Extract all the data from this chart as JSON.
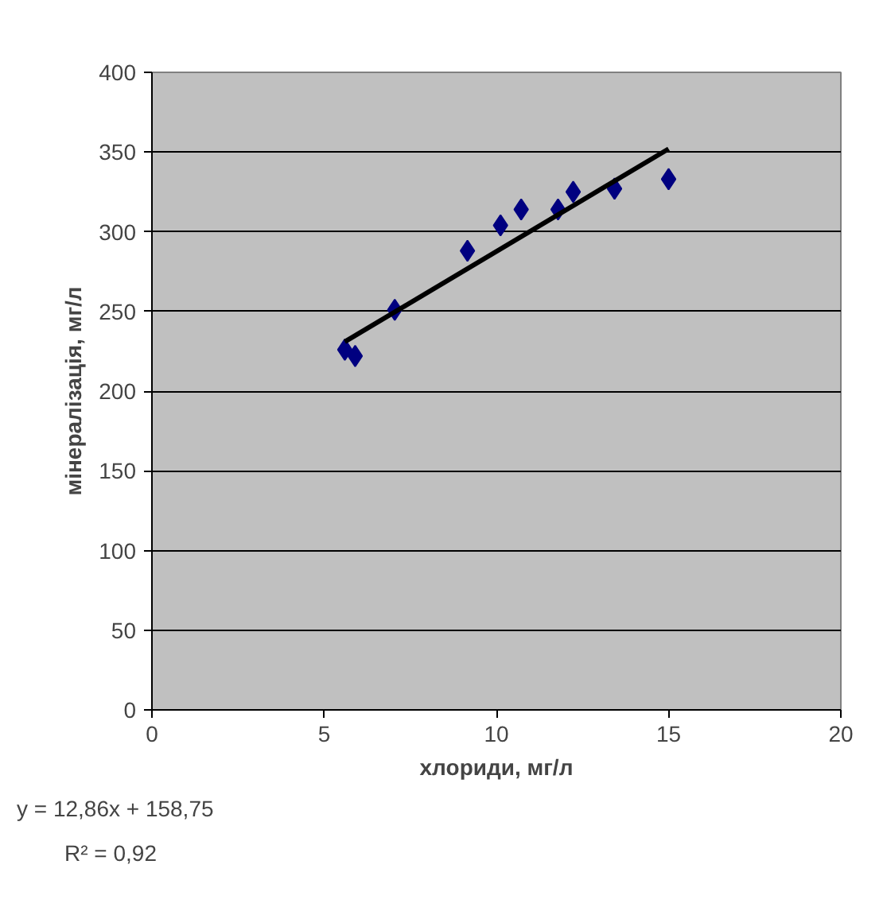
{
  "chart_data": {
    "type": "scatter",
    "xlabel": "хлориди, мг/л",
    "ylabel": "мінералізація, мг/л",
    "annotations": [
      "y = 12,86x + 158,75",
      "R² = 0,92"
    ],
    "xlim": [
      0,
      20
    ],
    "xticks": [
      0,
      5,
      10,
      15,
      20
    ],
    "ylim": [
      0,
      400
    ],
    "yticks": [
      0,
      50,
      100,
      150,
      200,
      250,
      300,
      350,
      400
    ],
    "grid": "y",
    "marker": "diamond",
    "series": [
      {
        "color": "#000080",
        "x": [
          5.6,
          5.9,
          7.05,
          9.16,
          10.12,
          10.72,
          11.79,
          12.23,
          13.43,
          15.0
        ],
        "values": [
          226,
          222,
          251,
          288,
          304,
          314,
          314,
          325,
          327,
          333
        ]
      },
      {
        "type": "line",
        "color": "#000000",
        "x": [
          5.6,
          15.0
        ],
        "values": [
          231,
          352
        ],
        "marker": "none",
        "line_style": "solid"
      }
    ]
  }
}
